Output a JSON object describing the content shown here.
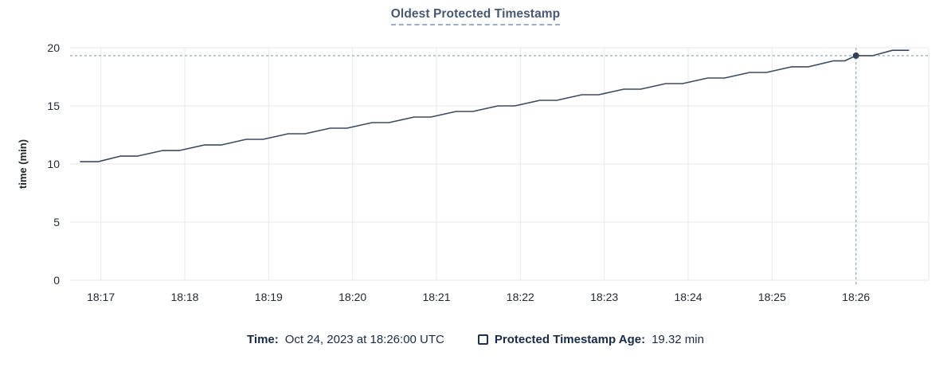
{
  "header": {
    "title": "Oldest Protected Timestamp"
  },
  "chart_data": {
    "type": "line",
    "title": "Oldest Protected Timestamp",
    "xlabel": "",
    "ylabel": "time (min)",
    "ylim": [
      0,
      20
    ],
    "y_ticks": [
      0,
      5,
      10,
      15,
      20
    ],
    "x_ticks": [
      "18:17",
      "18:18",
      "18:19",
      "18:20",
      "18:21",
      "18:22",
      "18:23",
      "18:24",
      "18:25",
      "18:26"
    ],
    "x_domain": [
      "18:16:38",
      "18:26:52"
    ],
    "grid": true,
    "legend_position": "bottom",
    "series": [
      {
        "name": "Protected Timestamp Age",
        "unit": "min",
        "color": "#3b4a63",
        "points": [
          [
            "18:16:45",
            10.2
          ],
          [
            "18:16:58",
            10.2
          ],
          [
            "18:17:14",
            10.68
          ],
          [
            "18:17:26",
            10.68
          ],
          [
            "18:17:44",
            11.16
          ],
          [
            "18:17:56",
            11.16
          ],
          [
            "18:18:14",
            11.64
          ],
          [
            "18:18:26",
            11.64
          ],
          [
            "18:18:44",
            12.12
          ],
          [
            "18:18:56",
            12.12
          ],
          [
            "18:19:14",
            12.6
          ],
          [
            "18:19:26",
            12.6
          ],
          [
            "18:19:44",
            13.08
          ],
          [
            "18:19:56",
            13.08
          ],
          [
            "18:20:14",
            13.56
          ],
          [
            "18:20:26",
            13.56
          ],
          [
            "18:20:44",
            14.04
          ],
          [
            "18:20:56",
            14.04
          ],
          [
            "18:21:14",
            14.52
          ],
          [
            "18:21:26",
            14.52
          ],
          [
            "18:21:44",
            15.0
          ],
          [
            "18:21:56",
            15.0
          ],
          [
            "18:22:14",
            15.48
          ],
          [
            "18:22:26",
            15.48
          ],
          [
            "18:22:44",
            15.96
          ],
          [
            "18:22:56",
            15.96
          ],
          [
            "18:23:14",
            16.44
          ],
          [
            "18:23:26",
            16.44
          ],
          [
            "18:23:44",
            16.92
          ],
          [
            "18:23:56",
            16.92
          ],
          [
            "18:24:14",
            17.4
          ],
          [
            "18:24:26",
            17.4
          ],
          [
            "18:24:44",
            17.88
          ],
          [
            "18:24:56",
            17.88
          ],
          [
            "18:25:14",
            18.36
          ],
          [
            "18:25:26",
            18.36
          ],
          [
            "18:25:44",
            18.88
          ],
          [
            "18:25:52",
            18.88
          ],
          [
            "18:26:00",
            19.32
          ],
          [
            "18:26:12",
            19.32
          ],
          [
            "18:26:26",
            19.78
          ],
          [
            "18:26:38",
            19.78
          ]
        ]
      }
    ],
    "hover": {
      "time": "18:26:00",
      "time_display": "Oct 24, 2023 at 18:26:00 UTC",
      "value": 19.32,
      "value_display": "19.32 min"
    }
  },
  "footer": {
    "time_label": "Time:",
    "time_value": "Oct 24, 2023 at 18:26:00 UTC",
    "series_label": "Protected Timestamp Age:",
    "series_value": "19.32 min"
  },
  "colors": {
    "title": "#475872",
    "title_underline": "#9dadc4",
    "line": "#3b4a63",
    "dot": "#32405a",
    "crosshair": "#a6b7c6",
    "grid": "#ececec",
    "axis_text": "#242a35",
    "legend_text": "#182b49",
    "background": "#ffffff"
  }
}
